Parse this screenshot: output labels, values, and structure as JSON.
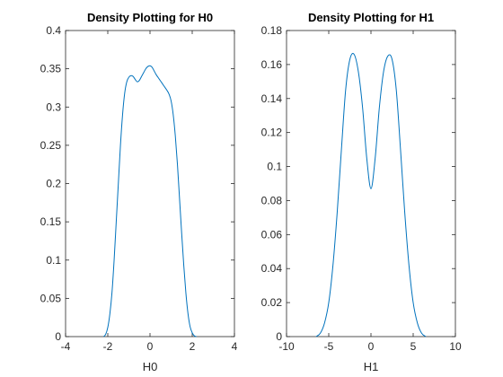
{
  "figure": {
    "background": "#ffffff",
    "axis_color": "#262626",
    "line_color": "#0072BD"
  },
  "chart_data": [
    {
      "type": "line",
      "title": "Density Plotting for H0",
      "xlabel": "H0",
      "ylabel": "",
      "xlim": [
        -4,
        4
      ],
      "ylim": [
        0,
        0.4
      ],
      "xticks": [
        -4,
        -2,
        0,
        2,
        4
      ],
      "xtick_labels": [
        "-4",
        "-2",
        "0",
        "2",
        "4"
      ],
      "yticks": [
        0,
        0.05,
        0.1,
        0.15,
        0.2,
        0.25,
        0.3,
        0.35,
        0.4
      ],
      "ytick_labels": [
        "0",
        "0.05",
        "0.1",
        "0.15",
        "0.2",
        "0.25",
        "0.3",
        "0.35",
        "0.4"
      ],
      "grid": false,
      "series": [
        {
          "x": [
            -2.2,
            -2.1,
            -2.0,
            -1.9,
            -1.8,
            -1.7,
            -1.6,
            -1.5,
            -1.4,
            -1.3,
            -1.2,
            -1.1,
            -1.0,
            -0.9,
            -0.8,
            -0.7,
            -0.6,
            -0.5,
            -0.4,
            -0.3,
            -0.2,
            -0.1,
            0.0,
            0.1,
            0.2,
            0.3,
            0.4,
            0.5,
            0.6,
            0.7,
            0.8,
            0.9,
            1.0,
            1.1,
            1.2,
            1.3,
            1.4,
            1.5,
            1.6,
            1.7,
            1.8,
            1.9,
            2.0,
            2.1,
            2.2
          ],
          "y": [
            0.0,
            0.003,
            0.012,
            0.03,
            0.058,
            0.1,
            0.15,
            0.2,
            0.25,
            0.29,
            0.318,
            0.333,
            0.339,
            0.341,
            0.34,
            0.336,
            0.333,
            0.335,
            0.34,
            0.345,
            0.35,
            0.353,
            0.354,
            0.352,
            0.347,
            0.342,
            0.338,
            0.334,
            0.33,
            0.326,
            0.322,
            0.317,
            0.308,
            0.29,
            0.262,
            0.225,
            0.18,
            0.135,
            0.093,
            0.057,
            0.03,
            0.013,
            0.005,
            0.001,
            0.0
          ]
        }
      ]
    },
    {
      "type": "line",
      "title": "Density Plotting for H1",
      "xlabel": "H1",
      "ylabel": "",
      "xlim": [
        -10,
        10
      ],
      "ylim": [
        0,
        0.18
      ],
      "xticks": [
        -10,
        -5,
        0,
        5,
        10
      ],
      "xtick_labels": [
        "-10",
        "-5",
        "0",
        "5",
        "10"
      ],
      "yticks": [
        0,
        0.02,
        0.04,
        0.06,
        0.08,
        0.1,
        0.12,
        0.14,
        0.16,
        0.18
      ],
      "ytick_labels": [
        "0",
        "0.02",
        "0.04",
        "0.06",
        "0.08",
        "0.1",
        "0.12",
        "0.14",
        "0.16",
        "0.18"
      ],
      "grid": false,
      "series": [
        {
          "x": [
            -6.5,
            -6.0,
            -5.5,
            -5.0,
            -4.5,
            -4.0,
            -3.5,
            -3.0,
            -2.5,
            -2.0,
            -1.5,
            -1.0,
            -0.5,
            0.0,
            0.5,
            1.0,
            1.5,
            2.0,
            2.5,
            3.0,
            3.5,
            4.0,
            4.5,
            5.0,
            5.5,
            6.0,
            6.5
          ],
          "y": [
            0.0,
            0.002,
            0.008,
            0.02,
            0.042,
            0.073,
            0.11,
            0.145,
            0.163,
            0.166,
            0.156,
            0.135,
            0.105,
            0.087,
            0.105,
            0.135,
            0.156,
            0.165,
            0.163,
            0.145,
            0.11,
            0.073,
            0.042,
            0.02,
            0.008,
            0.002,
            0.0
          ]
        }
      ]
    }
  ]
}
